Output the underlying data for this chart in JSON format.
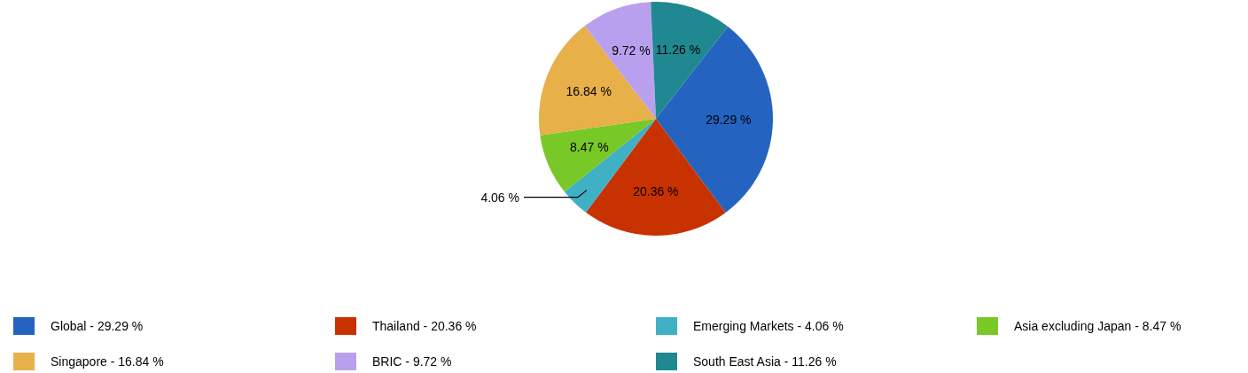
{
  "chart_data": {
    "type": "pie",
    "categories": [
      "Global",
      "Thailand",
      "Emerging Markets",
      "Asia excluding Japan",
      "Singapore",
      "BRIC",
      "South East Asia"
    ],
    "values": [
      29.29,
      20.36,
      4.06,
      8.47,
      16.84,
      9.72,
      11.26
    ],
    "value_labels": [
      "29.29 %",
      "20.36 %",
      "4.06 %",
      "8.47 %",
      "16.84 %",
      "9.72 %",
      "11.26 %"
    ],
    "colors": [
      "#2563c0",
      "#c83200",
      "#40b0c4",
      "#78c828",
      "#e8b048",
      "#b8a0ee",
      "#208890"
    ],
    "legend": "bottom"
  }
}
